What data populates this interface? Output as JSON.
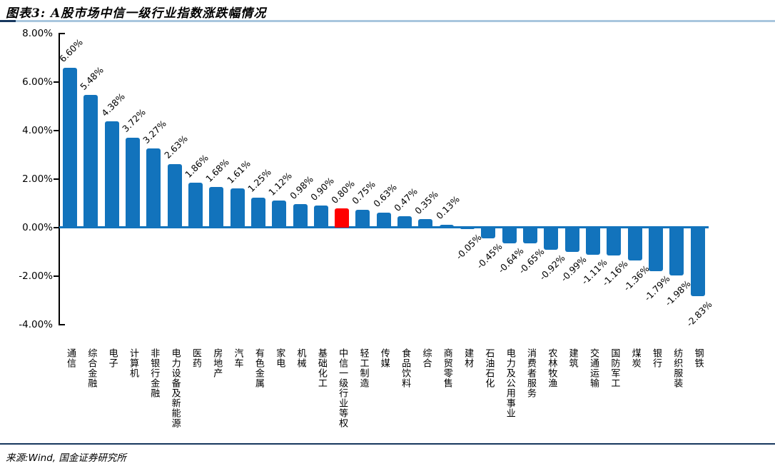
{
  "header": {
    "title": "图表3: A股市场中信一级行业指数涨跌幅情况"
  },
  "footer": {
    "source": "来源:Wind, 国金证券研究所"
  },
  "colors": {
    "bar": "#1273BC",
    "highlight": "#FF0000",
    "rule_dark": "#17375E",
    "rule_light": "#A9C6DE",
    "axis": "#000000",
    "text": "#000000",
    "background": "#FFFFFF"
  },
  "chart_data": {
    "type": "bar",
    "title": "图表3: A股市场中信一级行业指数涨跌幅情况",
    "xlabel": "",
    "ylabel": "",
    "unit": "%",
    "grid": false,
    "legend": "none",
    "ylim": [
      -4,
      8
    ],
    "ytick_values": [
      8,
      6,
      4,
      2,
      0,
      -2,
      -4
    ],
    "ytick_labels": [
      "8.00%",
      "6.00%",
      "4.00%",
      "2.00%",
      "0.00%",
      "-2.00%",
      "-4.00%"
    ],
    "categories": [
      "通信",
      "综合金融",
      "电子",
      "计算机",
      "非银行金融",
      "电力设备及新能源",
      "医药",
      "房地产",
      "汽车",
      "有色金属",
      "家电",
      "机械",
      "基础化工",
      "中信一级行业等权",
      "轻工制造",
      "传媒",
      "食品饮料",
      "综合",
      "商贸零售",
      "建材",
      "石油石化",
      "电力及公用事业",
      "消费者服务",
      "农林牧渔",
      "建筑",
      "交通运输",
      "国防军工",
      "煤炭",
      "银行",
      "纺织服装",
      "钢铁"
    ],
    "values": [
      6.6,
      5.48,
      4.38,
      3.72,
      3.27,
      2.63,
      1.86,
      1.68,
      1.61,
      1.25,
      1.12,
      0.98,
      0.9,
      0.8,
      0.75,
      0.63,
      0.47,
      0.35,
      0.13,
      -0.05,
      -0.45,
      -0.64,
      -0.65,
      -0.92,
      -0.99,
      -1.11,
      -1.16,
      -1.36,
      -1.79,
      -1.98,
      -2.83
    ],
    "value_label_format": "0.00%",
    "highlight_category": "中信一级行业等权",
    "highlight_color": "#FF0000",
    "bar_color": "#1273BC"
  }
}
